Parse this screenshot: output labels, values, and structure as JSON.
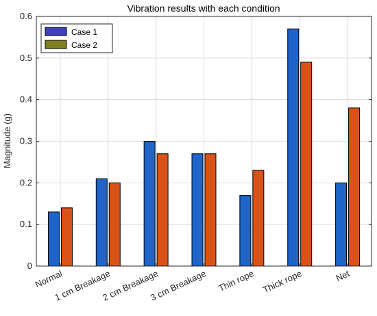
{
  "chart_data": {
    "type": "bar",
    "title": "Vibration results with each condition",
    "xlabel": "",
    "ylabel": "Magnitude (g)",
    "ylim": [
      0,
      0.6
    ],
    "yticks": [
      "0",
      "0.1",
      "0.2",
      "0.3",
      "0.4",
      "0.5",
      "0.6"
    ],
    "categories": [
      "Normal",
      "1 cm Breakage",
      "2 cm Breakage",
      "3 cm Breakage",
      "Thin rope",
      "Thick rope",
      "Net"
    ],
    "series": [
      {
        "name": "Case 1",
        "values": [
          0.13,
          0.21,
          0.3,
          0.27,
          0.17,
          0.57,
          0.2
        ],
        "color": "#1f64c8"
      },
      {
        "name": "Case 2",
        "values": [
          0.14,
          0.2,
          0.27,
          0.27,
          0.23,
          0.49,
          0.38
        ],
        "color": "#d95319"
      }
    ],
    "legend_swatches": [
      "#3f3fbf",
      "#7f7f1f"
    ],
    "grid": true,
    "legend_position": "top-left"
  }
}
